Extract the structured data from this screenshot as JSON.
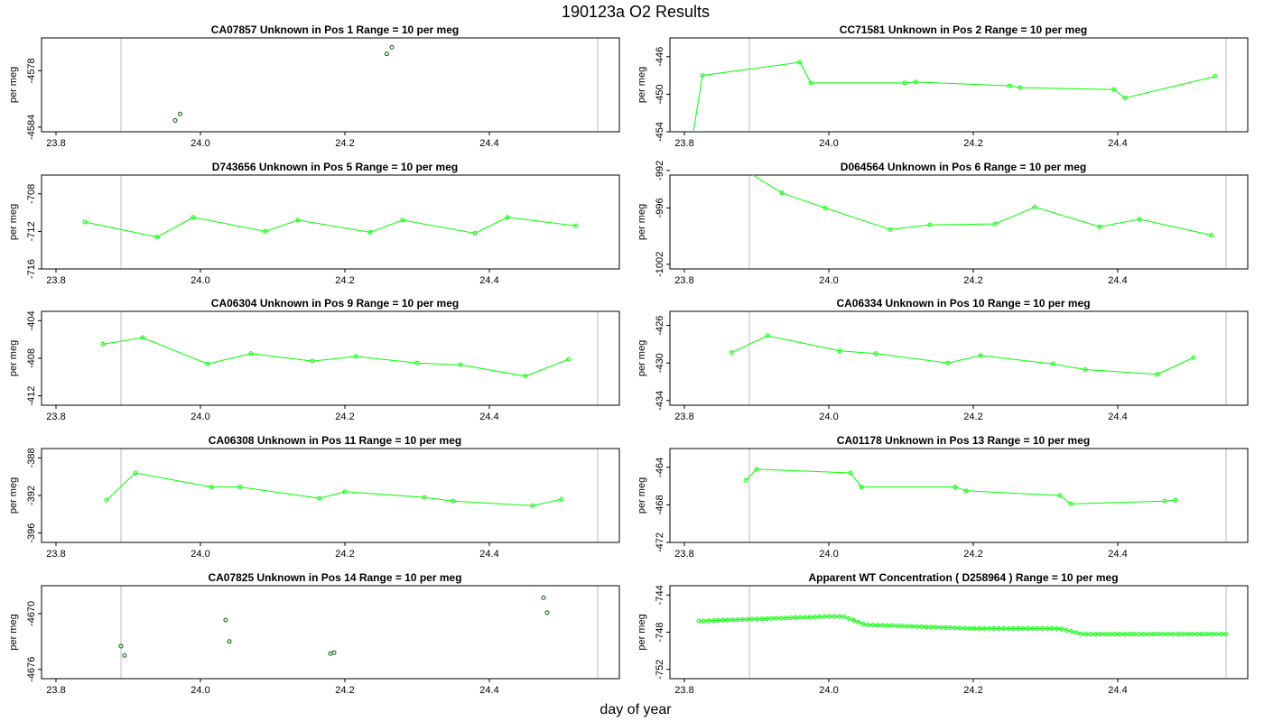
{
  "title": "190123a  O2 Results",
  "xlabel": "day of year",
  "colors": {
    "line": "#00ff00",
    "point_dark": "#006400",
    "vline": "#bebebe",
    "frame": "#000000"
  },
  "chart_data": [
    {
      "type": "scatter",
      "title": "CA07857    Unknown in Pos 1          Range = 10 per meg",
      "ylabel": "per meg",
      "xlim": [
        23.78,
        24.58
      ],
      "ylim": [
        -4584.5,
        -4574.5
      ],
      "xticks": [
        "23.8",
        "24.0",
        "24.2",
        "24.4"
      ],
      "yticks": [
        "-4578",
        "-4584"
      ],
      "vlines": [
        23.89,
        24.55
      ],
      "connect": false,
      "point_color": "dark",
      "series": [
        {
          "x": [
            23.965,
            23.972,
            24.258,
            24.265
          ],
          "y": [
            -4583.3,
            -4582.6,
            -4576.2,
            -4575.5
          ]
        }
      ]
    },
    {
      "type": "line",
      "title": "CC71581    Unknown in Pos 2          Range = 10 per meg",
      "ylabel": "per meg",
      "xlim": [
        23.78,
        24.58
      ],
      "ylim": [
        -454.0,
        -444.0
      ],
      "xticks": [
        "23.8",
        "24.0",
        "24.2",
        "24.4"
      ],
      "yticks": [
        "-446",
        "-450",
        "-454"
      ],
      "vlines": [
        23.89,
        24.55
      ],
      "connect": true,
      "point_color": "line",
      "series": [
        {
          "x": [
            23.8,
            23.825,
            23.96,
            23.975,
            24.105,
            24.12,
            24.25,
            24.265,
            24.395,
            24.41,
            24.535
          ],
          "y": [
            -460.0,
            -448.0,
            -446.6,
            -448.8,
            -448.8,
            -448.7,
            -449.1,
            -449.3,
            -449.5,
            -450.4,
            -448.1
          ]
        }
      ]
    },
    {
      "type": "line",
      "title": "D743656    Unknown in Pos 5          Range = 10 per meg",
      "ylabel": "per meg",
      "xlim": [
        23.78,
        24.58
      ],
      "ylim": [
        -716.0,
        -706.0
      ],
      "xticks": [
        "23.8",
        "24.0",
        "24.2",
        "24.4"
      ],
      "yticks": [
        "-708",
        "-712",
        "-716"
      ],
      "vlines": [
        23.89
      ],
      "connect": true,
      "point_color": "line",
      "series": [
        {
          "x": [
            23.84,
            23.94,
            23.99,
            24.09,
            24.135,
            24.235,
            24.28,
            24.38,
            24.425,
            24.52
          ],
          "y": [
            -711.0,
            -712.6,
            -710.5,
            -712.0,
            -710.8,
            -712.1,
            -710.8,
            -712.2,
            -710.5,
            -711.4
          ]
        }
      ]
    },
    {
      "type": "line",
      "title": "D064564    Unknown in Pos 6          Range = 10 per meg",
      "ylabel": "per meg",
      "xlim": [
        23.78,
        24.58
      ],
      "ylim": [
        -1002.5,
        -992.5
      ],
      "xticks": [
        "23.8",
        "24.0",
        "24.2",
        "24.4"
      ],
      "yticks": [
        "-992",
        "-996",
        "-1002"
      ],
      "vlines": [
        23.89,
        24.55
      ],
      "connect": true,
      "point_color": "line",
      "series": [
        {
          "x": [
            23.87,
            23.935,
            23.995,
            24.085,
            24.14,
            24.23,
            24.285,
            24.375,
            24.43,
            24.53
          ],
          "y": [
            -991.3,
            -994.4,
            -996.0,
            -998.3,
            -997.8,
            -997.7,
            -995.9,
            -998.0,
            -997.2,
            -998.9
          ]
        }
      ]
    },
    {
      "type": "line",
      "title": "CA06304    Unknown in Pos 9          Range = 10 per meg",
      "ylabel": "per meg",
      "xlim": [
        23.78,
        24.58
      ],
      "ylim": [
        -413.0,
        -403.0
      ],
      "xticks": [
        "23.8",
        "24.0",
        "24.2",
        "24.4"
      ],
      "yticks": [
        "-404",
        "-408",
        "-412"
      ],
      "vlines": [
        23.89,
        24.55
      ],
      "connect": true,
      "point_color": "line",
      "series": [
        {
          "x": [
            23.865,
            23.92,
            24.01,
            24.07,
            24.155,
            24.215,
            24.3,
            24.36,
            24.45,
            24.51
          ],
          "y": [
            -406.5,
            -405.8,
            -408.6,
            -407.5,
            -408.3,
            -407.8,
            -408.5,
            -408.7,
            -409.9,
            -408.1
          ]
        }
      ]
    },
    {
      "type": "line",
      "title": "CA06334    Unknown in Pos 10          Range = 10 per meg",
      "ylabel": "per meg",
      "xlim": [
        23.78,
        24.58
      ],
      "ylim": [
        -434.5,
        -424.5
      ],
      "xticks": [
        "23.8",
        "24.0",
        "24.2",
        "24.4"
      ],
      "yticks": [
        "-426",
        "-430",
        "-434"
      ],
      "vlines": [
        23.89,
        24.55
      ],
      "connect": true,
      "point_color": "line",
      "series": [
        {
          "x": [
            23.865,
            23.915,
            24.015,
            24.065,
            24.165,
            24.21,
            24.31,
            24.355,
            24.455,
            24.505
          ],
          "y": [
            -428.9,
            -427.1,
            -428.7,
            -429.0,
            -430.0,
            -429.2,
            -430.1,
            -430.7,
            -431.2,
            -429.4
          ]
        }
      ]
    },
    {
      "type": "line",
      "title": "CA06308    Unknown in Pos 11          Range = 10 per meg",
      "ylabel": "per meg",
      "xlim": [
        23.78,
        24.58
      ],
      "ylim": [
        -397.0,
        -387.0
      ],
      "xticks": [
        "23.8",
        "24.0",
        "24.2",
        "24.4"
      ],
      "yticks": [
        "-388",
        "-392",
        "-396"
      ],
      "vlines": [
        23.89,
        24.55
      ],
      "connect": true,
      "point_color": "line",
      "series": [
        {
          "x": [
            23.87,
            23.91,
            24.015,
            24.055,
            24.165,
            24.2,
            24.31,
            24.35,
            24.46,
            24.5
          ],
          "y": [
            -392.5,
            -389.6,
            -391.1,
            -391.1,
            -392.3,
            -391.6,
            -392.2,
            -392.6,
            -393.1,
            -392.4
          ]
        }
      ]
    },
    {
      "type": "line",
      "title": "CA01178    Unknown in Pos 13          Range = 10 per meg",
      "ylabel": "per meg",
      "xlim": [
        23.78,
        24.58
      ],
      "ylim": [
        -472.0,
        -462.0
      ],
      "xticks": [
        "23.8",
        "24.0",
        "24.2",
        "24.4"
      ],
      "yticks": [
        "-464",
        "-468",
        "-472"
      ],
      "vlines": [
        23.89,
        24.55
      ],
      "connect": true,
      "point_color": "line",
      "series": [
        {
          "x": [
            23.885,
            23.9,
            24.03,
            24.045,
            24.175,
            24.19,
            24.32,
            24.335,
            24.465,
            24.48
          ],
          "y": [
            -465.4,
            -464.2,
            -464.6,
            -466.1,
            -466.1,
            -466.5,
            -467.0,
            -467.9,
            -467.6,
            -467.5
          ]
        }
      ]
    },
    {
      "type": "scatter",
      "title": "CA07825    Unknown in Pos 14          Range = 10 per meg",
      "ylabel": "per meg",
      "xlim": [
        23.78,
        24.58
      ],
      "ylim": [
        -4677.0,
        -4667.0
      ],
      "xticks": [
        "23.8",
        "24.0",
        "24.2",
        "24.4"
      ],
      "yticks": [
        "-4670",
        "-4676"
      ],
      "vlines": [
        23.89,
        24.55
      ],
      "connect": false,
      "point_color": "dark",
      "series": [
        {
          "x": [
            23.89,
            23.895,
            24.035,
            24.04,
            24.18,
            24.185,
            24.475,
            24.48
          ],
          "y": [
            -4673.5,
            -4674.5,
            -4670.7,
            -4673.0,
            -4674.3,
            -4674.2,
            -4668.3,
            -4669.9
          ]
        }
      ]
    },
    {
      "type": "line",
      "title": "Apparent WT Concentration ( D258964 )          Range = 10 per meg",
      "ylabel": "per meg",
      "xlim": [
        23.78,
        24.58
      ],
      "ylim": [
        -753.0,
        -743.0
      ],
      "xticks": [
        "23.8",
        "24.0",
        "24.2",
        "24.4"
      ],
      "yticks": [
        "-744",
        "-748",
        "-752"
      ],
      "vlines": [
        23.89,
        24.55
      ],
      "connect": true,
      "point_color": "line",
      "dense_series": true,
      "series": [
        {
          "x": [
            23.82,
            24.0,
            24.02,
            24.05,
            24.2,
            24.32,
            24.35,
            24.5,
            24.55
          ],
          "y": [
            -746.8,
            -746.3,
            -746.3,
            -747.2,
            -747.6,
            -747.6,
            -748.2,
            -748.2,
            -748.2
          ]
        }
      ]
    }
  ]
}
